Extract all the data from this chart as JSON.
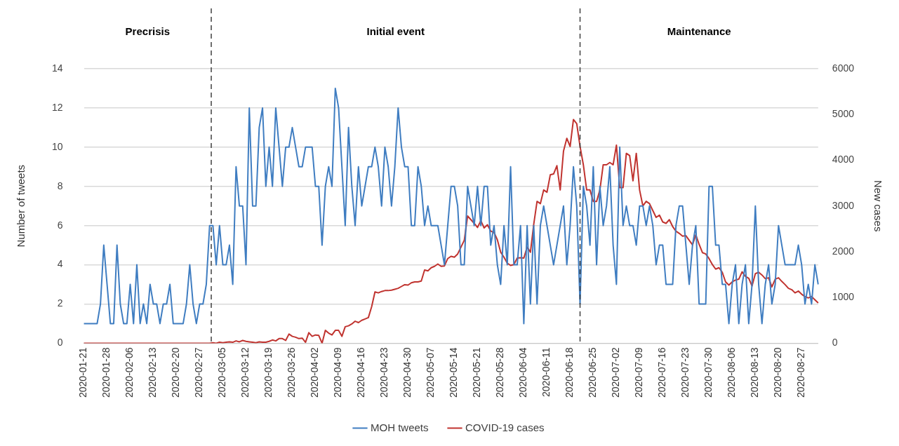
{
  "chart_data": {
    "type": "line",
    "categories": [
      "2020-01-21",
      null,
      null,
      null,
      null,
      null,
      null,
      "2020-01-28",
      null,
      null,
      null,
      null,
      null,
      null,
      "2020-02-06",
      null,
      null,
      null,
      null,
      null,
      null,
      "2020-02-13",
      null,
      null,
      null,
      null,
      null,
      null,
      "2020-02-20",
      null,
      null,
      null,
      null,
      null,
      null,
      "2020-02-27",
      null,
      null,
      null,
      null,
      null,
      null,
      "2020-03-05",
      null,
      null,
      null,
      null,
      null,
      null,
      "2020-03-12",
      null,
      null,
      null,
      null,
      null,
      null,
      "2020-03-19",
      null,
      null,
      null,
      null,
      null,
      null,
      "2020-03-26",
      null,
      null,
      null,
      null,
      null,
      null,
      "2020-04-02",
      null,
      null,
      null,
      null,
      null,
      null,
      "2020-04-09",
      null,
      null,
      null,
      null,
      null,
      null,
      "2020-04-16",
      null,
      null,
      null,
      null,
      null,
      null,
      "2020-04-23",
      null,
      null,
      null,
      null,
      null,
      null,
      "2020-04-30",
      null,
      null,
      null,
      null,
      null,
      null,
      "2020-05-07",
      null,
      null,
      null,
      null,
      null,
      null,
      "2020-05-14",
      null,
      null,
      null,
      null,
      null,
      null,
      "2020-05-21",
      null,
      null,
      null,
      null,
      null,
      null,
      "2020-05-28",
      null,
      null,
      null,
      null,
      null,
      null,
      "2020-06-04",
      null,
      null,
      null,
      null,
      null,
      null,
      "2020-06-11",
      null,
      null,
      null,
      null,
      null,
      null,
      "2020-06-18",
      null,
      null,
      null,
      null,
      null,
      null,
      "2020-06-25",
      null,
      null,
      null,
      null,
      null,
      null,
      "2020-07-02",
      null,
      null,
      null,
      null,
      null,
      null,
      "2020-07-09",
      null,
      null,
      null,
      null,
      null,
      null,
      "2020-07-16",
      null,
      null,
      null,
      null,
      null,
      null,
      "2020-07-23",
      null,
      null,
      null,
      null,
      null,
      null,
      "2020-07-30",
      null,
      null,
      null,
      null,
      null,
      null,
      "2020-08-06",
      null,
      null,
      null,
      null,
      null,
      null,
      "2020-08-13",
      null,
      null,
      null,
      null,
      null,
      null,
      "2020-08-20",
      null,
      null,
      null,
      null,
      null,
      null,
      "2020-08-27",
      null,
      null,
      null,
      null,
      null
    ],
    "series": [
      {
        "name": "MOH tweets",
        "color": "#3f7dc1",
        "values": [
          1,
          1,
          1,
          1,
          1,
          2,
          5,
          3,
          1,
          1,
          5,
          2,
          1,
          1,
          3,
          1,
          4,
          1,
          2,
          1,
          3,
          2,
          2,
          1,
          2,
          2,
          3,
          1,
          1,
          1,
          1,
          2,
          4,
          2,
          1,
          2,
          2,
          3,
          6,
          6,
          4,
          6,
          4,
          4,
          5,
          3,
          9,
          7,
          7,
          4,
          12,
          7,
          7,
          11,
          12,
          8,
          10,
          8,
          12,
          10,
          8,
          10,
          10,
          11,
          10,
          9,
          9,
          10,
          10,
          10,
          8,
          8,
          5,
          8,
          9,
          8,
          13,
          12,
          9,
          6,
          11,
          8,
          6,
          9,
          7,
          8,
          9,
          9,
          10,
          9,
          7,
          10,
          9,
          7,
          9,
          12,
          10,
          9,
          9,
          6,
          6,
          9,
          8,
          6,
          7,
          6,
          6,
          6,
          5,
          4,
          6,
          8,
          8,
          7,
          4,
          4,
          8,
          7,
          6,
          8,
          6,
          8,
          8,
          5,
          6,
          4,
          3,
          6,
          4,
          9,
          4,
          4,
          6,
          1,
          6,
          2,
          6,
          2,
          6,
          7,
          6,
          5,
          4,
          5,
          6,
          7,
          4,
          6,
          9,
          7,
          2,
          8,
          7,
          5,
          9,
          4,
          8,
          6,
          7,
          9,
          5,
          3,
          10,
          6,
          7,
          6,
          6,
          5,
          7,
          7,
          6,
          7,
          6,
          4,
          5,
          5,
          3,
          3,
          3,
          6,
          7,
          7,
          5,
          3,
          5,
          6,
          2,
          2,
          2,
          8,
          8,
          5,
          5,
          3,
          3,
          1,
          3,
          4,
          1,
          3,
          4,
          1,
          3,
          7,
          3,
          1,
          3,
          4,
          2,
          3,
          6,
          5,
          4,
          4,
          4,
          4,
          5,
          4,
          2,
          3,
          2,
          4,
          3
        ]
      },
      {
        "name": "COVID-19 cases",
        "color": "#c0332f",
        "axis": "y2",
        "values": [
          0,
          0,
          0,
          0,
          0,
          0,
          0,
          0,
          0,
          0,
          0,
          0,
          0,
          0,
          0,
          0,
          0,
          0,
          0,
          0,
          0,
          0,
          0,
          0,
          0,
          0,
          0,
          0,
          0,
          0,
          0,
          0,
          0,
          0,
          0,
          0,
          0,
          0,
          0,
          10,
          0,
          20,
          10,
          20,
          30,
          20,
          50,
          30,
          60,
          40,
          30,
          20,
          10,
          30,
          20,
          20,
          40,
          70,
          50,
          100,
          100,
          60,
          200,
          150,
          130,
          100,
          110,
          20,
          230,
          150,
          180,
          170,
          0,
          280,
          220,
          180,
          280,
          280,
          150,
          360,
          380,
          420,
          480,
          450,
          500,
          530,
          560,
          800,
          1120,
          1100,
          1130,
          1150,
          1150,
          1160,
          1180,
          1200,
          1240,
          1280,
          1270,
          1320,
          1340,
          1340,
          1360,
          1600,
          1580,
          1650,
          1680,
          1730,
          1680,
          1690,
          1850,
          1900,
          1880,
          1950,
          2100,
          2250,
          2780,
          2700,
          2620,
          2530,
          2680,
          2520,
          2590,
          2450,
          2420,
          2260,
          1990,
          1880,
          1750,
          1700,
          1720,
          1860,
          1870,
          1860,
          2100,
          1990,
          2600,
          3100,
          3050,
          3350,
          3300,
          3680,
          3700,
          3880,
          3350,
          4200,
          4480,
          4300,
          4890,
          4800,
          4300,
          3900,
          3350,
          3350,
          3100,
          3100,
          3350,
          3900,
          3900,
          3950,
          3900,
          4330,
          3400,
          3400,
          4150,
          4100,
          3550,
          4150,
          3350,
          3000,
          3100,
          3050,
          2900,
          2750,
          2800,
          2650,
          2620,
          2700,
          2550,
          2450,
          2400,
          2340,
          2350,
          2250,
          2150,
          2370,
          2160,
          1980,
          1950,
          1850,
          1720,
          1620,
          1650,
          1550,
          1340,
          1270,
          1340,
          1380,
          1400,
          1560,
          1460,
          1420,
          1250,
          1520,
          1550,
          1490,
          1410,
          1430,
          1230,
          1400,
          1430,
          1350,
          1280,
          1200,
          1170,
          1100,
          1140,
          1070,
          1020,
          990,
          1020,
          950,
          880
        ]
      }
    ],
    "ylabel": "Number of tweets",
    "y2label": "New cases",
    "ylim": [
      0,
      14
    ],
    "yticks": [
      0,
      2,
      4,
      6,
      8,
      10,
      12,
      14
    ],
    "y2lim": [
      0,
      6000
    ],
    "y2ticks": [
      0,
      1000,
      2000,
      3000,
      4000,
      5000,
      6000
    ],
    "annotations": [
      "Precrisis",
      "Initial event",
      "Maintenance"
    ],
    "grid": "y",
    "legend": "bottom",
    "marker": "none"
  }
}
